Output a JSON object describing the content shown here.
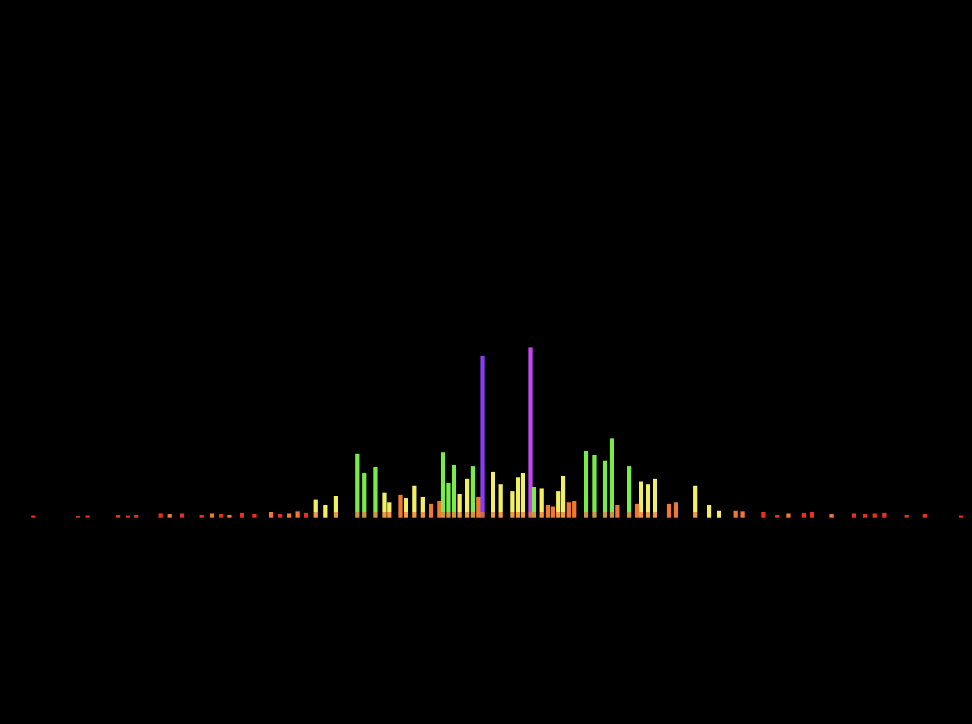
{
  "chart_data": {
    "type": "bar",
    "title": "",
    "xlabel": "",
    "ylabel": "",
    "ylim": [
      0,
      250
    ],
    "grid": false,
    "legend": "none",
    "background": "#000000",
    "colors": {
      "red": "#e8321e",
      "orange": "#f07830",
      "yellow": "#f2f062",
      "green": "#7aec4a",
      "blue": "#8a3cf0",
      "violet": "#c646f0"
    },
    "bars": [
      {
        "x": 48,
        "value": 3,
        "color": "red"
      },
      {
        "x": 112,
        "value": 2,
        "color": "red"
      },
      {
        "x": 126,
        "value": 3,
        "color": "red"
      },
      {
        "x": 170,
        "value": 4,
        "color": "red"
      },
      {
        "x": 184,
        "value": 3,
        "color": "red"
      },
      {
        "x": 196,
        "value": 4,
        "color": "red"
      },
      {
        "x": 231,
        "value": 6,
        "color": "red"
      },
      {
        "x": 244,
        "value": 5,
        "color": "orange"
      },
      {
        "x": 262,
        "value": 6,
        "color": "red"
      },
      {
        "x": 290,
        "value": 4,
        "color": "red"
      },
      {
        "x": 305,
        "value": 6,
        "color": "orange"
      },
      {
        "x": 318,
        "value": 5,
        "color": "red"
      },
      {
        "x": 330,
        "value": 4,
        "color": "orange"
      },
      {
        "x": 348,
        "value": 7,
        "color": "red"
      },
      {
        "x": 366,
        "value": 5,
        "color": "red"
      },
      {
        "x": 390,
        "value": 8,
        "color": "orange"
      },
      {
        "x": 403,
        "value": 5,
        "color": "red"
      },
      {
        "x": 416,
        "value": 6,
        "color": "orange"
      },
      {
        "x": 428,
        "value": 9,
        "color": "orange"
      },
      {
        "x": 440,
        "value": 7,
        "color": "red"
      },
      {
        "x": 454,
        "value": 26,
        "color": "yellow"
      },
      {
        "x": 468,
        "value": 18,
        "color": "yellow"
      },
      {
        "x": 483,
        "value": 31,
        "color": "yellow"
      },
      {
        "x": 514,
        "value": 92,
        "color": "green"
      },
      {
        "x": 524,
        "value": 64,
        "color": "green"
      },
      {
        "x": 540,
        "value": 73,
        "color": "green"
      },
      {
        "x": 553,
        "value": 36,
        "color": "yellow"
      },
      {
        "x": 560,
        "value": 22,
        "color": "yellow"
      },
      {
        "x": 576,
        "value": 33,
        "color": "orange"
      },
      {
        "x": 584,
        "value": 28,
        "color": "yellow"
      },
      {
        "x": 596,
        "value": 46,
        "color": "yellow"
      },
      {
        "x": 608,
        "value": 30,
        "color": "yellow"
      },
      {
        "x": 620,
        "value": 20,
        "color": "orange"
      },
      {
        "x": 632,
        "value": 24,
        "color": "orange"
      },
      {
        "x": 637,
        "value": 94,
        "color": "green"
      },
      {
        "x": 645,
        "value": 50,
        "color": "green"
      },
      {
        "x": 653,
        "value": 76,
        "color": "green"
      },
      {
        "x": 661,
        "value": 34,
        "color": "yellow"
      },
      {
        "x": 672,
        "value": 56,
        "color": "yellow"
      },
      {
        "x": 680,
        "value": 74,
        "color": "green"
      },
      {
        "x": 688,
        "value": 30,
        "color": "orange"
      },
      {
        "x": 694,
        "value": 233,
        "color": "blue"
      },
      {
        "x": 709,
        "value": 66,
        "color": "yellow"
      },
      {
        "x": 720,
        "value": 48,
        "color": "yellow"
      },
      {
        "x": 737,
        "value": 38,
        "color": "yellow"
      },
      {
        "x": 745,
        "value": 58,
        "color": "yellow"
      },
      {
        "x": 752,
        "value": 64,
        "color": "yellow"
      },
      {
        "x": 763,
        "value": 245,
        "color": "violet"
      },
      {
        "x": 768,
        "value": 44,
        "color": "green"
      },
      {
        "x": 779,
        "value": 42,
        "color": "yellow"
      },
      {
        "x": 788,
        "value": 18,
        "color": "orange"
      },
      {
        "x": 795,
        "value": 16,
        "color": "orange"
      },
      {
        "x": 803,
        "value": 38,
        "color": "yellow"
      },
      {
        "x": 810,
        "value": 60,
        "color": "yellow"
      },
      {
        "x": 818,
        "value": 22,
        "color": "orange"
      },
      {
        "x": 826,
        "value": 24,
        "color": "orange"
      },
      {
        "x": 843,
        "value": 96,
        "color": "green"
      },
      {
        "x": 855,
        "value": 90,
        "color": "green"
      },
      {
        "x": 870,
        "value": 82,
        "color": "green"
      },
      {
        "x": 880,
        "value": 114,
        "color": "green"
      },
      {
        "x": 888,
        "value": 18,
        "color": "orange"
      },
      {
        "x": 905,
        "value": 74,
        "color": "green"
      },
      {
        "x": 916,
        "value": 20,
        "color": "orange"
      },
      {
        "x": 922,
        "value": 52,
        "color": "yellow"
      },
      {
        "x": 932,
        "value": 48,
        "color": "yellow"
      },
      {
        "x": 942,
        "value": 56,
        "color": "yellow"
      },
      {
        "x": 962,
        "value": 20,
        "color": "orange"
      },
      {
        "x": 972,
        "value": 22,
        "color": "orange"
      },
      {
        "x": 1000,
        "value": 46,
        "color": "yellow"
      },
      {
        "x": 1020,
        "value": 18,
        "color": "yellow"
      },
      {
        "x": 1034,
        "value": 10,
        "color": "yellow"
      },
      {
        "x": 1058,
        "value": 10,
        "color": "orange"
      },
      {
        "x": 1068,
        "value": 9,
        "color": "orange"
      },
      {
        "x": 1098,
        "value": 8,
        "color": "red"
      },
      {
        "x": 1118,
        "value": 4,
        "color": "red"
      },
      {
        "x": 1134,
        "value": 6,
        "color": "orange"
      },
      {
        "x": 1156,
        "value": 7,
        "color": "red"
      },
      {
        "x": 1168,
        "value": 8,
        "color": "red"
      },
      {
        "x": 1196,
        "value": 5,
        "color": "orange"
      },
      {
        "x": 1228,
        "value": 6,
        "color": "red"
      },
      {
        "x": 1244,
        "value": 5,
        "color": "red"
      },
      {
        "x": 1258,
        "value": 6,
        "color": "red"
      },
      {
        "x": 1272,
        "value": 7,
        "color": "red"
      },
      {
        "x": 1304,
        "value": 4,
        "color": "red"
      },
      {
        "x": 1330,
        "value": 5,
        "color": "red"
      },
      {
        "x": 1382,
        "value": 3,
        "color": "red"
      }
    ]
  }
}
